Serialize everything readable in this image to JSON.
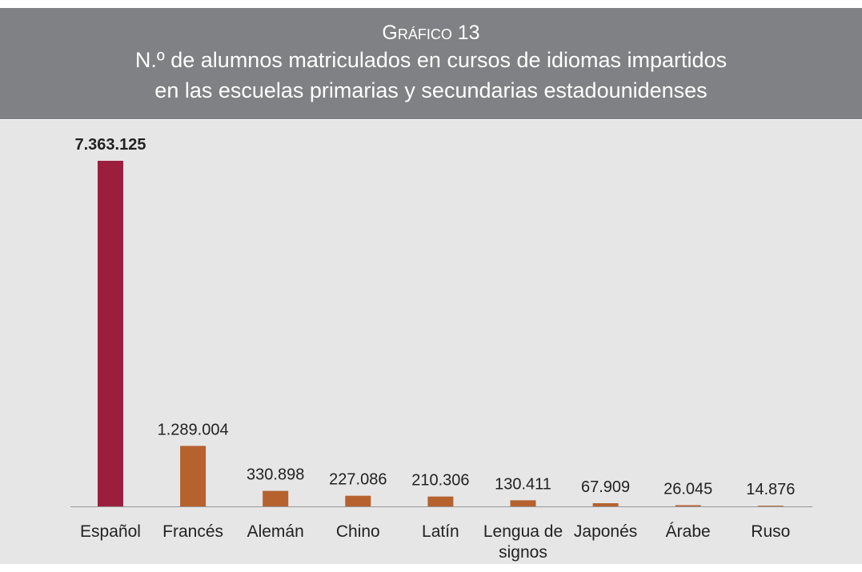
{
  "chart_data": {
    "type": "bar",
    "title": "Gráfico 13",
    "subtitle": [
      "N.º de alumnos matriculados en cursos de idiomas impartidos",
      "en las escuelas primarias y secundarias estadounidenses"
    ],
    "categories": [
      "Español",
      "Francés",
      "Alemán",
      "Chino",
      "Latín",
      "Lengua de signos",
      "Japonés",
      "Árabe",
      "Ruso"
    ],
    "values": [
      7363125,
      1289004,
      330898,
      227086,
      210306,
      130411,
      67909,
      26045,
      14876
    ],
    "value_labels": [
      "7.363.125",
      "1.289.004",
      "330.898",
      "227.086",
      "210.306",
      "130.411",
      "67.909",
      "26.045",
      "14.876"
    ],
    "colors": [
      "#9b1f3d",
      "#b5622f",
      "#b5622f",
      "#b5622f",
      "#b5622f",
      "#b5622f",
      "#b5622f",
      "#b5622f",
      "#b5622f"
    ]
  }
}
